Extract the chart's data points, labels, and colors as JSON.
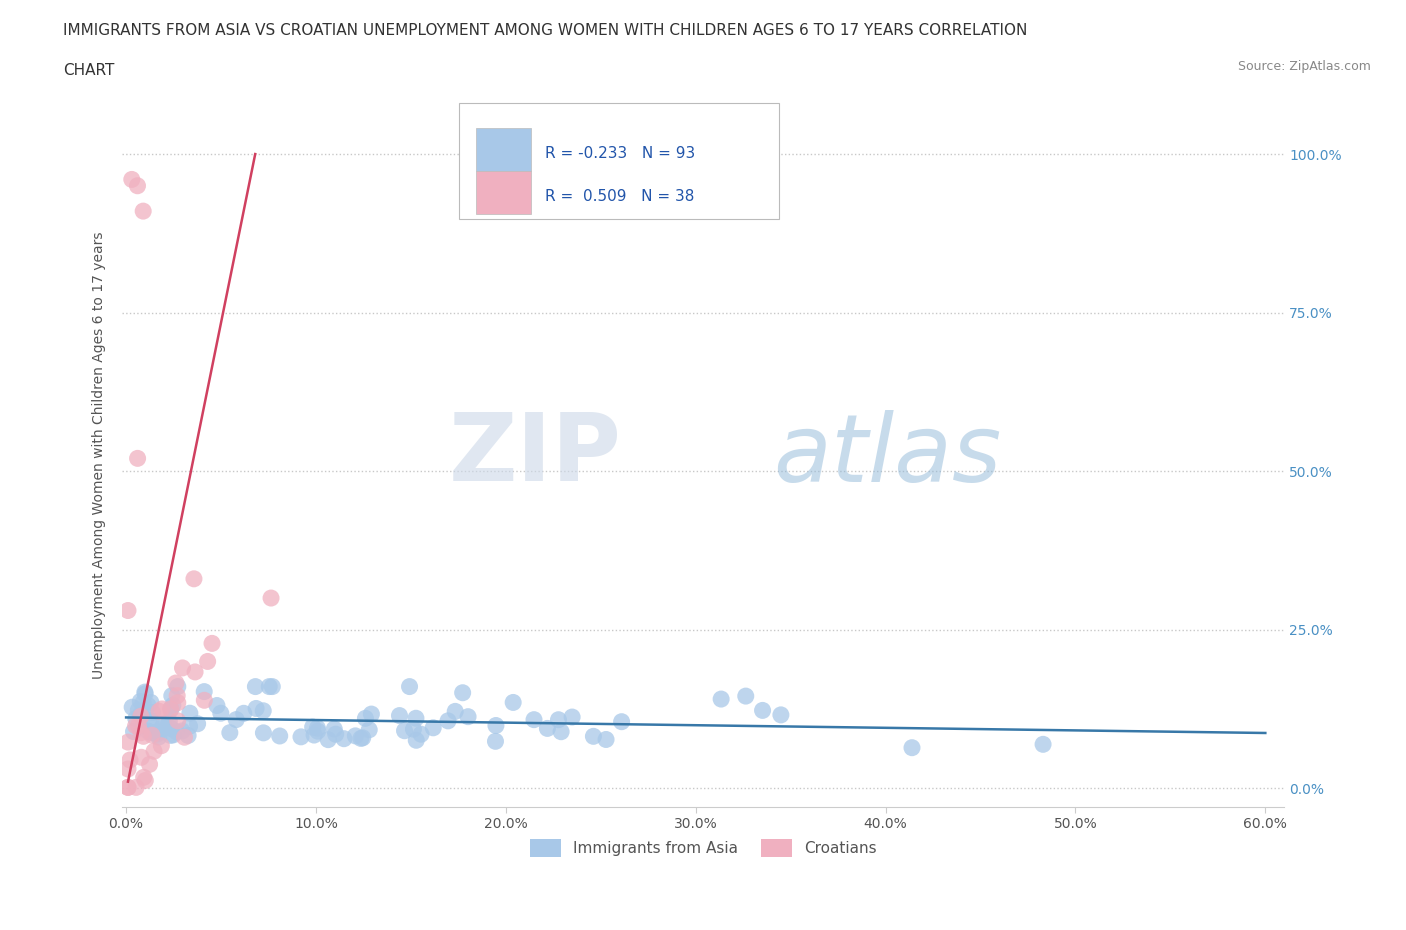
{
  "title_line1": "IMMIGRANTS FROM ASIA VS CROATIAN UNEMPLOYMENT AMONG WOMEN WITH CHILDREN AGES 6 TO 17 YEARS CORRELATION",
  "title_line2": "CHART",
  "source": "Source: ZipAtlas.com",
  "ylabel": "Unemployment Among Women with Children Ages 6 to 17 years",
  "xlim": [
    -0.002,
    0.61
  ],
  "ylim": [
    -0.03,
    1.08
  ],
  "xticks": [
    0.0,
    0.1,
    0.2,
    0.3,
    0.4,
    0.5,
    0.6
  ],
  "xticklabels": [
    "0.0%",
    "10.0%",
    "20.0%",
    "30.0%",
    "40.0%",
    "50.0%",
    "60.0%"
  ],
  "yticks": [
    0.0,
    0.25,
    0.5,
    0.75,
    1.0
  ],
  "yticklabels_right": [
    "0.0%",
    "25.0%",
    "50.0%",
    "75.0%",
    "100.0%"
  ],
  "grid_color": "#c8c8c8",
  "background_color": "#ffffff",
  "blue_color": "#a8c8e8",
  "pink_color": "#f0b0c0",
  "blue_line_color": "#3878a8",
  "pink_line_color": "#d04060",
  "R_blue": -0.233,
  "N_blue": 93,
  "R_pink": 0.509,
  "N_pink": 38,
  "legend_label_blue": "Immigrants from Asia",
  "legend_label_pink": "Croatians",
  "watermark_zip": "ZIP",
  "watermark_atlas": "atlas",
  "blue_scatter_seed": 77,
  "pink_scatter_seed": 55
}
